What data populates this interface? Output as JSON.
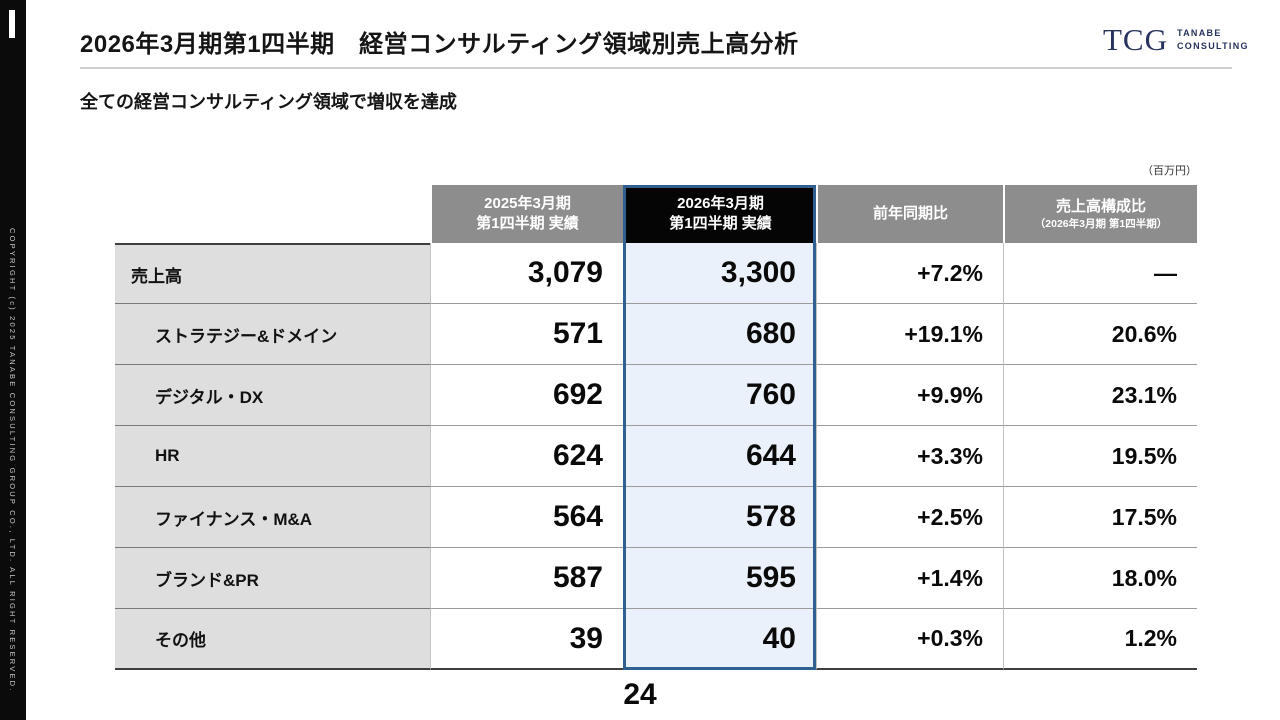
{
  "sidebar": {
    "copyright": "COPYRIGHT (c) 2025 TANABE CONSULTING GROUP CO., LTD. ALL RIGHT RESERVED."
  },
  "header": {
    "title": "2026年3月期第1四半期　経営コンサルティング領域別売上高分析",
    "logo": {
      "mark": "TCG",
      "line1": "TANABE",
      "line2": "CONSULTING"
    }
  },
  "subtitle": "全ての経営コンサルティング領域で増収を達成",
  "unit_label": "（百万円）",
  "page_number": "24",
  "chart_data": {
    "type": "table",
    "columns": [
      {
        "line1": "2025年3月期",
        "line2": "第1四半期 実績"
      },
      {
        "line1": "2026年3月期",
        "line2": "第1四半期 実績"
      },
      {
        "line1": "前年同期比",
        "line2": ""
      },
      {
        "line1": "売上高構成比",
        "line2": "（2026年3月期 第1四半期）"
      }
    ],
    "rows": [
      {
        "label": "売上高",
        "prev": "3,079",
        "curr": "3,300",
        "yoy": "+7.2%",
        "share": "—"
      },
      {
        "label": "ストラテジー&ドメイン",
        "prev": "571",
        "curr": "680",
        "yoy": "+19.1%",
        "share": "20.6%"
      },
      {
        "label": "デジタル・DX",
        "prev": "692",
        "curr": "760",
        "yoy": "+9.9%",
        "share": "23.1%"
      },
      {
        "label": "HR",
        "prev": "624",
        "curr": "644",
        "yoy": "+3.3%",
        "share": "19.5%"
      },
      {
        "label": "ファイナンス・M&A",
        "prev": "564",
        "curr": "578",
        "yoy": "+2.5%",
        "share": "17.5%"
      },
      {
        "label": "ブランド&PR",
        "prev": "587",
        "curr": "595",
        "yoy": "+1.4%",
        "share": "18.0%"
      },
      {
        "label": "その他",
        "prev": "39",
        "curr": "40",
        "yoy": "+0.3%",
        "share": "1.2%"
      }
    ]
  }
}
